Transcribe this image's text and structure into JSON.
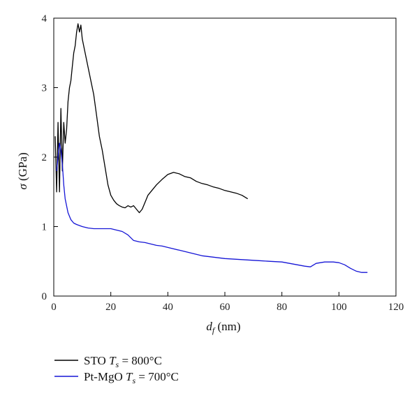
{
  "chart_data": {
    "type": "line",
    "title": "",
    "xlabel": {
      "symbol": "d",
      "sub": "f",
      "unit": " (nm)"
    },
    "ylabel": {
      "symbol": "σ",
      "unit": " (GPa)"
    },
    "xlim": [
      0,
      120
    ],
    "ylim": [
      0,
      4
    ],
    "xticks": [
      "0",
      "20",
      "40",
      "60",
      "80",
      "100",
      "120"
    ],
    "yticks": [
      "0",
      "1",
      "2",
      "3",
      "4"
    ],
    "grid": false,
    "legend_position": "below",
    "series": [
      {
        "name": "STO",
        "ts_label": "T",
        "ts_sub": "s",
        "ts_value": " = 800°C",
        "color": "#000000",
        "points": [
          [
            0.5,
            2.3
          ],
          [
            1,
            1.5
          ],
          [
            1.5,
            2.5
          ],
          [
            2,
            1.5
          ],
          [
            2.5,
            2.7
          ],
          [
            3,
            1.8
          ],
          [
            3.5,
            2.5
          ],
          [
            4,
            2.2
          ],
          [
            4.5,
            2.4
          ],
          [
            5,
            2.8
          ],
          [
            5.5,
            3.0
          ],
          [
            6,
            3.1
          ],
          [
            6.5,
            3.3
          ],
          [
            7,
            3.5
          ],
          [
            7.5,
            3.6
          ],
          [
            8,
            3.8
          ],
          [
            8.5,
            3.92
          ],
          [
            9,
            3.8
          ],
          [
            9.5,
            3.9
          ],
          [
            10,
            3.7
          ],
          [
            11,
            3.5
          ],
          [
            12,
            3.3
          ],
          [
            13,
            3.1
          ],
          [
            14,
            2.9
          ],
          [
            15,
            2.6
          ],
          [
            16,
            2.3
          ],
          [
            17,
            2.1
          ],
          [
            18,
            1.85
          ],
          [
            19,
            1.6
          ],
          [
            20,
            1.45
          ],
          [
            21,
            1.38
          ],
          [
            22,
            1.33
          ],
          [
            23,
            1.3
          ],
          [
            24,
            1.28
          ],
          [
            25,
            1.27
          ],
          [
            26,
            1.3
          ],
          [
            27,
            1.28
          ],
          [
            28,
            1.3
          ],
          [
            29,
            1.25
          ],
          [
            30,
            1.2
          ],
          [
            31,
            1.25
          ],
          [
            32,
            1.35
          ],
          [
            33,
            1.45
          ],
          [
            34,
            1.5
          ],
          [
            36,
            1.6
          ],
          [
            38,
            1.68
          ],
          [
            40,
            1.75
          ],
          [
            42,
            1.78
          ],
          [
            44,
            1.76
          ],
          [
            46,
            1.72
          ],
          [
            48,
            1.7
          ],
          [
            50,
            1.65
          ],
          [
            52,
            1.62
          ],
          [
            54,
            1.6
          ],
          [
            56,
            1.57
          ],
          [
            58,
            1.55
          ],
          [
            60,
            1.52
          ],
          [
            62,
            1.5
          ],
          [
            64,
            1.48
          ],
          [
            66,
            1.45
          ],
          [
            68,
            1.4
          ]
        ]
      },
      {
        "name": "Pt-MgO",
        "ts_label": "T",
        "ts_sub": "s",
        "ts_value": " = 700°C",
        "color": "#1515d6",
        "points": [
          [
            1,
            1.8
          ],
          [
            1.5,
            2.0
          ],
          [
            2,
            2.2
          ],
          [
            2.5,
            2.1
          ],
          [
            3,
            1.9
          ],
          [
            3.5,
            1.6
          ],
          [
            4,
            1.4
          ],
          [
            5,
            1.2
          ],
          [
            6,
            1.1
          ],
          [
            7,
            1.05
          ],
          [
            8,
            1.03
          ],
          [
            10,
            1.0
          ],
          [
            12,
            0.98
          ],
          [
            14,
            0.97
          ],
          [
            16,
            0.97
          ],
          [
            18,
            0.97
          ],
          [
            20,
            0.97
          ],
          [
            22,
            0.95
          ],
          [
            24,
            0.93
          ],
          [
            26,
            0.88
          ],
          [
            28,
            0.8
          ],
          [
            30,
            0.78
          ],
          [
            32,
            0.77
          ],
          [
            34,
            0.75
          ],
          [
            36,
            0.73
          ],
          [
            38,
            0.72
          ],
          [
            40,
            0.7
          ],
          [
            44,
            0.66
          ],
          [
            48,
            0.62
          ],
          [
            52,
            0.58
          ],
          [
            56,
            0.56
          ],
          [
            60,
            0.54
          ],
          [
            64,
            0.53
          ],
          [
            68,
            0.52
          ],
          [
            72,
            0.51
          ],
          [
            76,
            0.5
          ],
          [
            80,
            0.49
          ],
          [
            84,
            0.46
          ],
          [
            88,
            0.43
          ],
          [
            90,
            0.42
          ],
          [
            92,
            0.47
          ],
          [
            95,
            0.49
          ],
          [
            98,
            0.49
          ],
          [
            100,
            0.48
          ],
          [
            102,
            0.45
          ],
          [
            104,
            0.4
          ],
          [
            106,
            0.36
          ],
          [
            108,
            0.34
          ],
          [
            110,
            0.34
          ]
        ]
      }
    ]
  }
}
